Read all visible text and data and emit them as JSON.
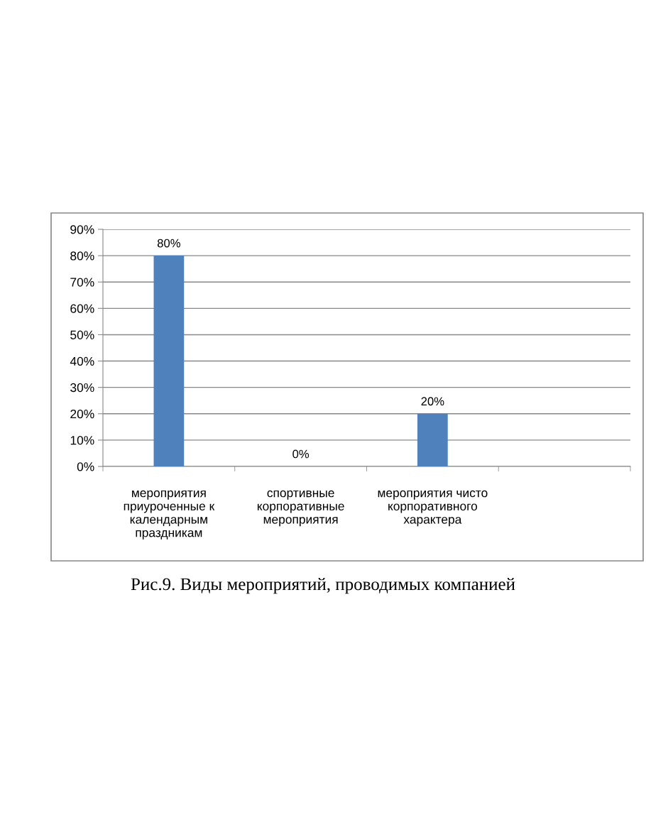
{
  "chart_data": {
    "type": "bar",
    "categories": [
      "мероприятия\nприуроченные к\nкалендарным\nпраздникам",
      "спортивные\nкорпоративные\nмероприятия",
      "мероприятия чисто\nкорпоративного\nхарактера",
      null
    ],
    "values": [
      80,
      0,
      20,
      null
    ],
    "value_labels": [
      "80%",
      "0%",
      "20%",
      null
    ],
    "color": "#4f81bd",
    "ylim": [
      0,
      90
    ],
    "yticks": [
      {
        "value": 0,
        "label": "0%"
      },
      {
        "value": 10,
        "label": "10%"
      },
      {
        "value": 20,
        "label": "20%"
      },
      {
        "value": 30,
        "label": "30%"
      },
      {
        "value": 40,
        "label": "40%"
      },
      {
        "value": 50,
        "label": "50%"
      },
      {
        "value": 60,
        "label": "60%"
      },
      {
        "value": 70,
        "label": "70%"
      },
      {
        "value": 80,
        "label": "80%"
      },
      {
        "value": 90,
        "label": "90%"
      }
    ],
    "grid": "y",
    "legend": false,
    "annotations": [
      "Рис.9. Виды мероприятий, проводимых компанией"
    ]
  }
}
